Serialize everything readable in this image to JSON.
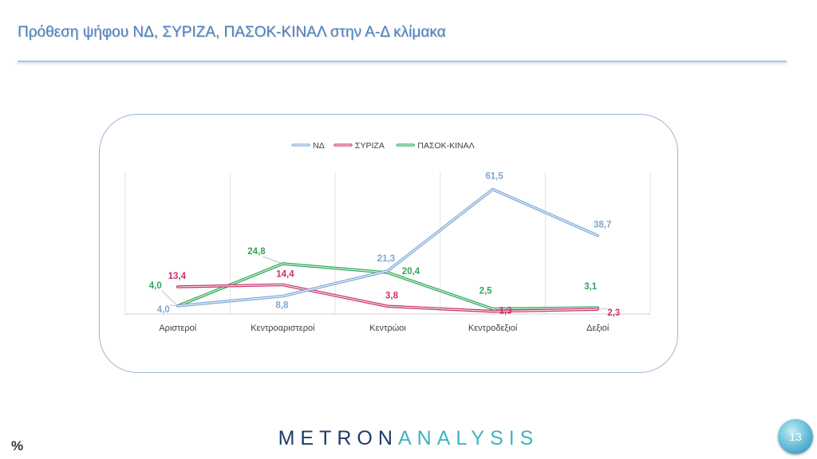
{
  "slide": {
    "title": "Πρόθεση ψήφου ΝΔ, ΣΥΡΙΖΑ, ΠΑΣΟΚ-ΚΙΝΑΛ στην Α-Δ κλίμακα",
    "unit_mark": "%",
    "logo_part1": "METRON",
    "logo_part2": "ANALYSIS",
    "page_number": "13"
  },
  "chart_data": {
    "type": "line",
    "title": "",
    "xlabel": "",
    "ylabel": "",
    "ylim": [
      0,
      70
    ],
    "grid": "vertical",
    "legend": "top",
    "categories": [
      "Αριστεροί",
      "Κεντροαριστεροί",
      "Κεντρώοι",
      "Κεντροδεξιοί",
      "Δεξιοί"
    ],
    "series": [
      {
        "name": "ΝΔ",
        "color": "#7fa7d4",
        "values": [
          4.0,
          8.8,
          21.3,
          61.5,
          38.7
        ],
        "labels": [
          "4,0",
          "8,8",
          "21,3",
          "61,5",
          "38,7"
        ]
      },
      {
        "name": "ΣΥΡΙΖΑ",
        "color": "#c8326b",
        "values": [
          13.4,
          14.4,
          3.8,
          1.3,
          2.3
        ],
        "labels": [
          "13,4",
          "14,4",
          "3,8",
          "1,3",
          "2,3"
        ]
      },
      {
        "name": "ΠΑΣΟΚ-ΚΙΝΑΛ",
        "color": "#2ea855",
        "values": [
          4.0,
          24.8,
          20.4,
          2.5,
          3.1
        ],
        "labels": [
          "4,0",
          "24,8",
          "20,4",
          "2,5",
          "3,1"
        ]
      }
    ]
  }
}
